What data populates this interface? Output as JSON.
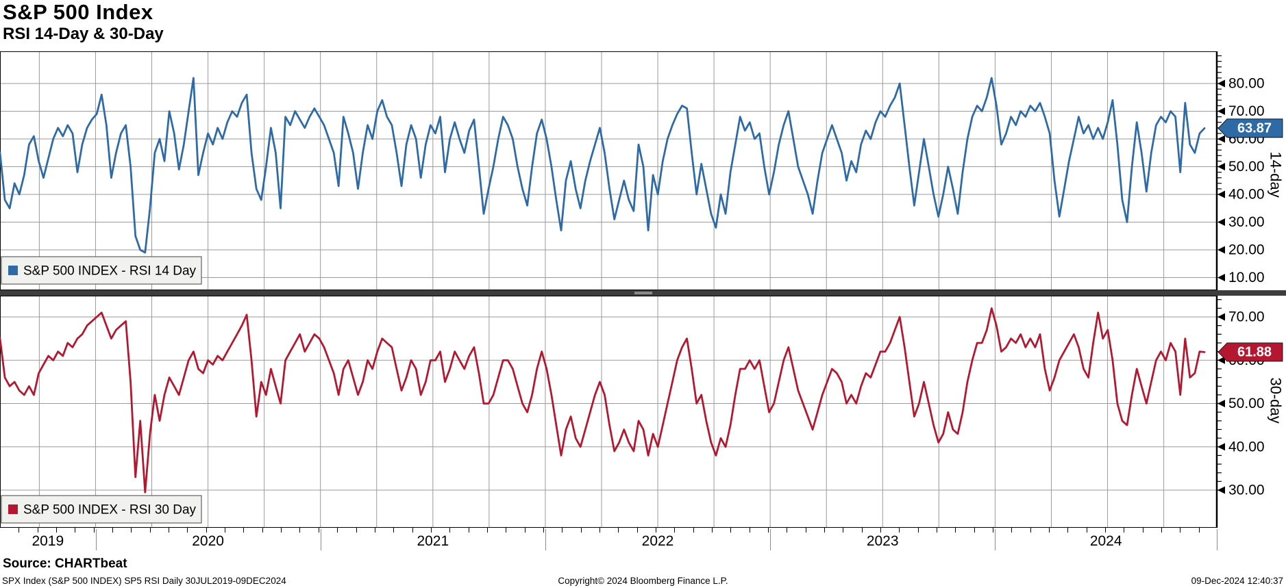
{
  "header": {
    "title": "S&P 500 Index",
    "subtitle": "RSI 14-Day & 30-Day"
  },
  "source_line": "Source: CHARTbeat",
  "footer": {
    "left": "SPX Index (S&P 500 INDEX) SP5 RSI  Daily 30JUL2019-09DEC2024",
    "center": "Copyright© 2024 Bloomberg Finance L.P.",
    "right": "09-Dec-2024 12:40:37"
  },
  "colors": {
    "rsi14": "#2e6ba6",
    "rsi30": "#b41830",
    "grid": "#9a9a9a",
    "frame": "#000000",
    "legend_bg": "#f1f1ef",
    "legend_border": "#606060"
  },
  "x_axis": {
    "year_labels": [
      "2019",
      "2020",
      "2021",
      "2022",
      "2023",
      "2024"
    ]
  },
  "chart_data": [
    {
      "type": "line",
      "panel": "top",
      "series_name": "S&P 500 INDEX - RSI 14 Day",
      "axis_title": "14-day",
      "color": "#2e6ba6",
      "yticks": [
        10,
        20,
        30,
        40,
        50,
        60,
        70,
        80
      ],
      "ylim": [
        3,
        92
      ],
      "last_value": 63.87,
      "x_range": "30JUL2019-09DEC2024",
      "x_year_boundaries": [
        "2020",
        "2021",
        "2022",
        "2023",
        "2024"
      ],
      "values": [
        55,
        38,
        35,
        44,
        40,
        47,
        58,
        61,
        52,
        46,
        53,
        60,
        64,
        61,
        65,
        62,
        48,
        58,
        64,
        67,
        69,
        76,
        65,
        46,
        55,
        62,
        65,
        50,
        25,
        20,
        19,
        35,
        55,
        60,
        52,
        70,
        62,
        49,
        58,
        70,
        82,
        47,
        55,
        62,
        58,
        64,
        60,
        66,
        70,
        68,
        73,
        76,
        55,
        42,
        38,
        50,
        64,
        55,
        35,
        68,
        65,
        70,
        67,
        64,
        68,
        71,
        68,
        65,
        60,
        55,
        43,
        68,
        62,
        55,
        42,
        55,
        65,
        60,
        70,
        74,
        68,
        65,
        55,
        43,
        58,
        65,
        60,
        46,
        58,
        65,
        62,
        68,
        48,
        60,
        66,
        60,
        55,
        63,
        67,
        50,
        33,
        42,
        50,
        60,
        68,
        65,
        60,
        50,
        42,
        36,
        50,
        62,
        67,
        60,
        50,
        38,
        27,
        45,
        52,
        42,
        35,
        45,
        52,
        58,
        64,
        55,
        42,
        31,
        38,
        45,
        38,
        34,
        58,
        50,
        27,
        47,
        40,
        52,
        60,
        65,
        69,
        72,
        71,
        55,
        40,
        51,
        42,
        33,
        28,
        40,
        33,
        48,
        58,
        68,
        63,
        66,
        60,
        62,
        50,
        40,
        48,
        58,
        65,
        70,
        60,
        50,
        45,
        40,
        33,
        45,
        55,
        60,
        65,
        60,
        55,
        45,
        52,
        48,
        58,
        63,
        60,
        66,
        70,
        68,
        72,
        75,
        80,
        65,
        50,
        36,
        48,
        60,
        50,
        40,
        32,
        40,
        50,
        42,
        33,
        48,
        60,
        68,
        72,
        70,
        75,
        82,
        72,
        58,
        62,
        68,
        65,
        70,
        68,
        72,
        70,
        73,
        68,
        62,
        45,
        32,
        42,
        52,
        60,
        68,
        62,
        65,
        60,
        64,
        60,
        66,
        74,
        58,
        38,
        30,
        50,
        66,
        55,
        41,
        55,
        65,
        68,
        66,
        70,
        68,
        48,
        73,
        58,
        55,
        62,
        63.87
      ]
    },
    {
      "type": "line",
      "panel": "bottom",
      "series_name": "S&P 500 INDEX - RSI 30 Day",
      "axis_title": "30-day",
      "color": "#b41830",
      "yticks": [
        30,
        40,
        50,
        60,
        70
      ],
      "ylim": [
        21,
        75
      ],
      "last_value": 61.88,
      "x_range": "30JUL2019-09DEC2024",
      "x_year_boundaries": [
        "2020",
        "2021",
        "2022",
        "2023",
        "2024"
      ],
      "values": [
        65,
        56,
        54,
        55,
        53,
        52,
        54,
        52,
        57,
        59,
        61,
        60,
        62,
        61,
        64,
        63,
        65,
        66,
        68,
        69,
        70,
        71,
        68,
        65,
        67,
        68,
        69,
        55,
        33,
        46,
        29.5,
        43,
        52,
        46,
        52,
        56,
        54,
        52,
        56,
        60,
        62,
        58,
        57,
        60,
        59,
        61,
        60,
        62,
        64,
        66,
        68,
        70.5,
        60,
        47,
        55,
        52,
        58,
        54,
        50,
        60,
        62,
        64,
        66,
        62,
        64,
        66,
        65,
        63,
        60,
        57,
        52,
        58,
        60,
        56,
        52,
        55,
        60,
        58,
        62,
        65,
        64,
        63,
        58,
        53,
        56,
        60,
        58,
        52,
        55,
        60,
        60,
        62,
        55,
        58,
        62,
        60,
        58,
        61,
        63,
        57,
        50,
        50,
        52,
        56,
        60,
        60,
        58,
        54,
        50,
        48,
        52,
        58,
        62,
        58,
        52,
        45,
        38,
        44,
        47,
        42,
        40,
        44,
        48,
        52,
        55,
        52,
        45,
        39,
        41,
        44,
        41,
        39,
        46,
        44,
        38,
        43,
        40,
        45,
        50,
        55,
        60,
        63,
        65,
        58,
        50,
        52,
        46,
        41,
        38,
        42,
        40,
        45,
        52,
        58,
        58,
        60,
        58,
        60,
        54,
        48,
        50,
        55,
        60,
        63,
        58,
        53,
        50,
        47,
        44,
        48,
        52,
        55,
        58,
        57,
        55,
        50,
        52,
        50,
        54,
        57,
        56,
        59,
        62,
        62,
        64,
        67,
        70,
        63,
        55,
        47,
        50,
        55,
        50,
        45,
        41,
        43,
        48,
        44,
        43,
        48,
        55,
        60,
        64,
        64,
        67,
        72,
        68,
        62,
        63,
        65,
        64,
        66,
        63,
        65,
        63,
        66,
        58,
        53,
        56,
        60,
        62,
        64,
        66,
        63,
        58,
        56,
        64,
        71,
        65,
        67,
        60,
        50,
        46,
        45,
        52,
        58,
        54,
        50,
        55,
        60,
        62,
        60,
        64,
        62,
        52,
        65,
        56,
        57,
        62,
        61.88
      ]
    }
  ]
}
